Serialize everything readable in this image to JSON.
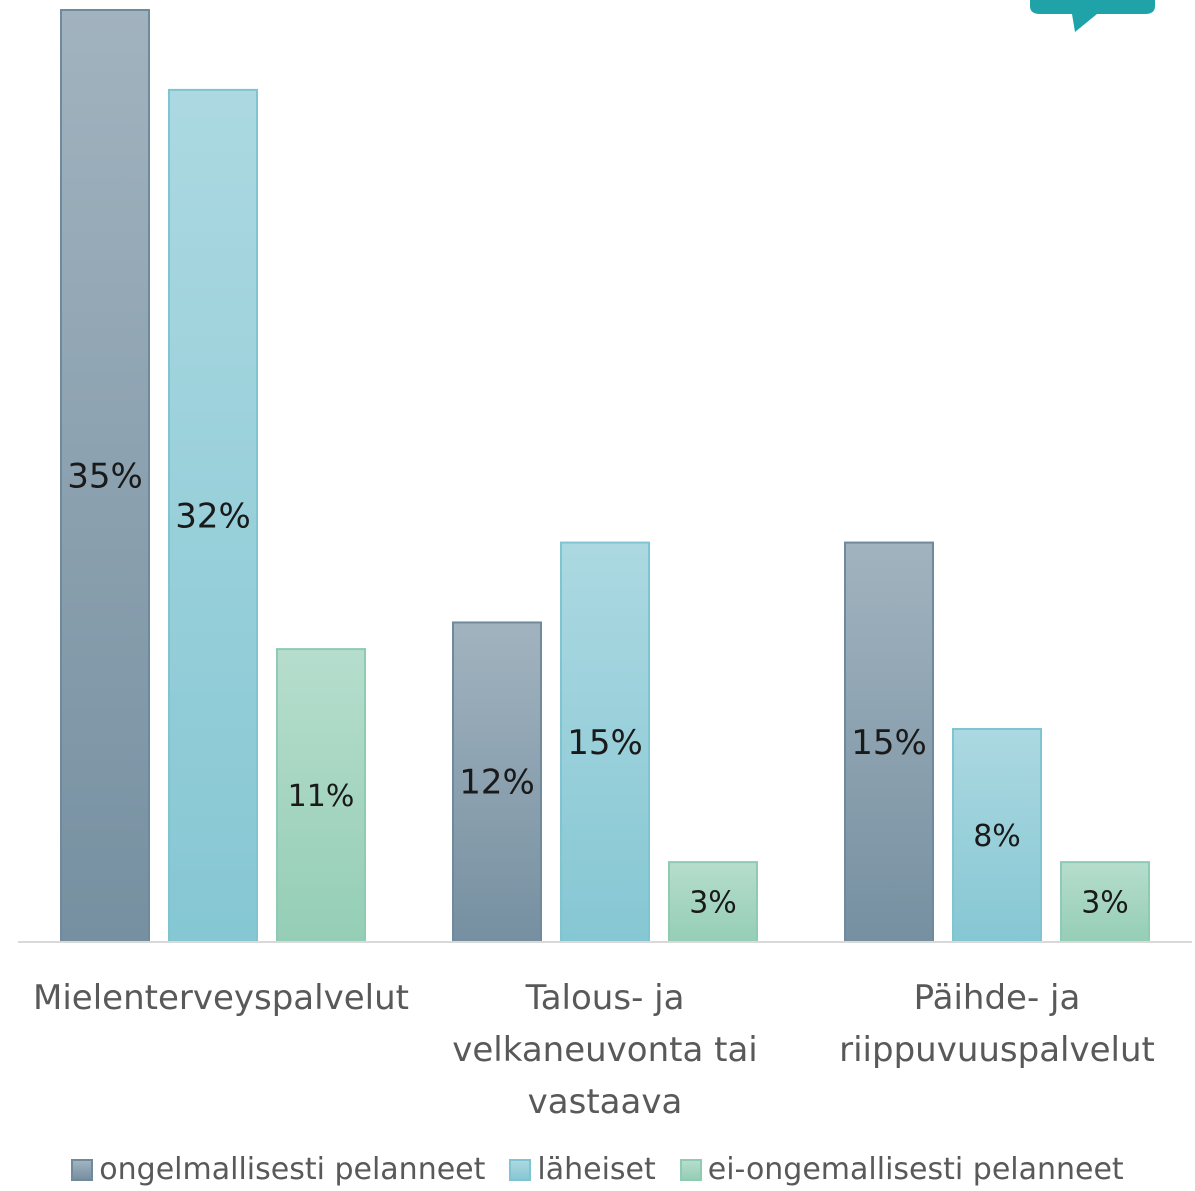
{
  "chart_data": {
    "type": "bar",
    "categories": [
      "Mielenterveyspalvelut",
      "Talous- ja velkaneuvonta tai vastaava",
      "Päihde- ja riippuvuuspalvelut"
    ],
    "series": [
      {
        "name": "ongelmallisesti pelanneet",
        "color": "#6f8a9c",
        "values": [
          35,
          12,
          15
        ],
        "value_labels": [
          "35%",
          "12%",
          "15%"
        ]
      },
      {
        "name": "läheiset",
        "color": "#7fc4d1",
        "values": [
          32,
          15,
          8
        ],
        "value_labels": [
          "32%",
          "15%",
          "8%"
        ]
      },
      {
        "name": "ei-ongemallisesti pelanneet",
        "color": "#8fcbb2",
        "values": [
          11,
          3,
          3
        ],
        "value_labels": [
          "11%",
          "3%",
          "3%"
        ]
      }
    ],
    "ylim": [
      0,
      35
    ],
    "grid": false,
    "legend": "bottom"
  }
}
